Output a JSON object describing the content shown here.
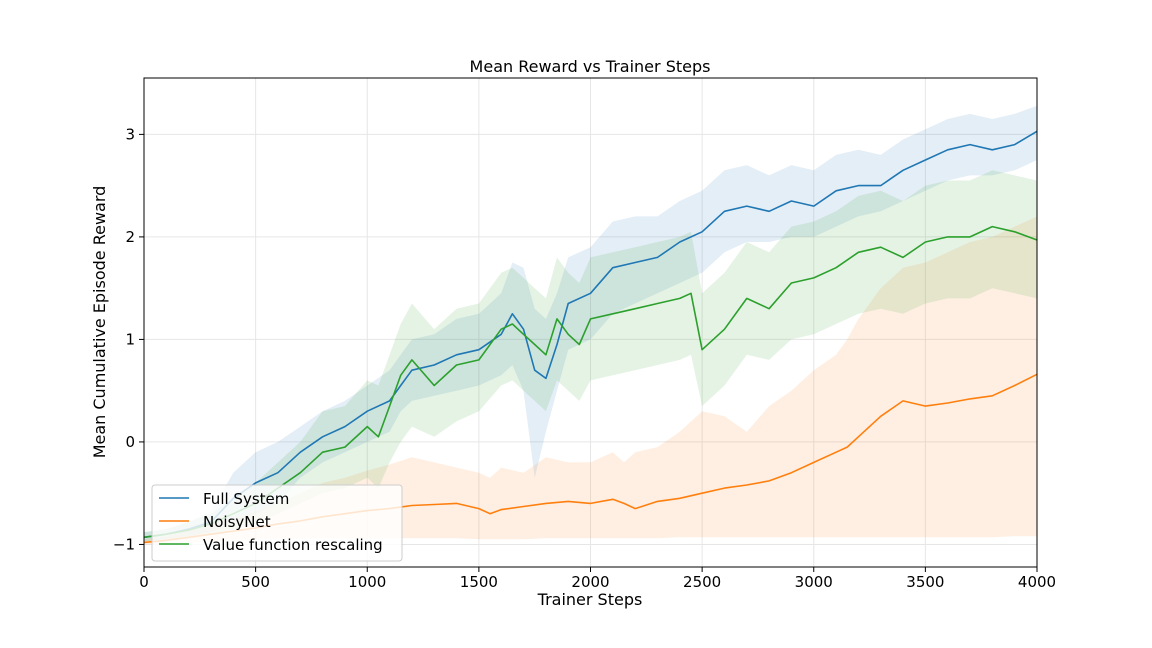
{
  "chart_data": {
    "type": "line",
    "title": "Mean Reward vs Trainer Steps",
    "xlabel": "Trainer Steps",
    "ylabel": "Mean Cumulative Episode Reward",
    "xlim": [
      0,
      4000
    ],
    "ylim": [
      -1.22,
      3.55
    ],
    "xticks": [
      0,
      500,
      1000,
      1500,
      2000,
      2500,
      3000,
      3500,
      4000
    ],
    "yticks": [
      -1,
      0,
      1,
      2,
      3
    ],
    "grid": true,
    "legend_position": "lower-left",
    "series": [
      {
        "name": "Full System",
        "color": "#1f77b4",
        "x": [
          0,
          100,
          200,
          300,
          400,
          500,
          600,
          700,
          800,
          900,
          1000,
          1100,
          1150,
          1200,
          1300,
          1400,
          1500,
          1600,
          1650,
          1700,
          1750,
          1800,
          1850,
          1900,
          2000,
          2100,
          2200,
          2300,
          2400,
          2500,
          2600,
          2700,
          2800,
          2900,
          3000,
          3100,
          3200,
          3300,
          3400,
          3500,
          3600,
          3700,
          3800,
          3900,
          4000
        ],
        "y": [
          -0.93,
          -0.9,
          -0.85,
          -0.78,
          -0.55,
          -0.4,
          -0.3,
          -0.1,
          0.05,
          0.15,
          0.3,
          0.4,
          0.55,
          0.7,
          0.75,
          0.85,
          0.9,
          1.05,
          1.25,
          1.1,
          0.7,
          0.62,
          0.95,
          1.35,
          1.45,
          1.7,
          1.75,
          1.8,
          1.95,
          2.05,
          2.25,
          2.3,
          2.25,
          2.35,
          2.3,
          2.45,
          2.5,
          2.5,
          2.65,
          2.75,
          2.85,
          2.9,
          2.85,
          2.9,
          3.03
        ],
        "band_lower": [
          -0.97,
          -0.95,
          -0.92,
          -0.88,
          -0.8,
          -0.7,
          -0.6,
          -0.35,
          -0.2,
          -0.1,
          0.0,
          0.1,
          0.3,
          0.4,
          0.45,
          0.5,
          0.55,
          0.65,
          0.75,
          0.5,
          -0.35,
          0.1,
          0.5,
          0.9,
          1.0,
          1.25,
          1.35,
          1.45,
          1.55,
          1.65,
          1.85,
          1.95,
          1.95,
          2.0,
          2.0,
          2.1,
          2.2,
          2.25,
          2.35,
          2.45,
          2.55,
          2.6,
          2.6,
          2.65,
          2.75
        ],
        "band_upper": [
          -0.88,
          -0.85,
          -0.78,
          -0.68,
          -0.3,
          -0.1,
          0.0,
          0.15,
          0.3,
          0.4,
          0.55,
          0.7,
          0.85,
          1.0,
          1.05,
          1.2,
          1.25,
          1.45,
          1.75,
          1.7,
          1.3,
          1.2,
          1.45,
          1.8,
          1.9,
          2.15,
          2.2,
          2.2,
          2.35,
          2.45,
          2.65,
          2.7,
          2.6,
          2.7,
          2.65,
          2.8,
          2.85,
          2.8,
          2.95,
          3.05,
          3.15,
          3.2,
          3.15,
          3.2,
          3.28
        ]
      },
      {
        "name": "NoisyNet",
        "color": "#ff7f0e",
        "x": [
          0,
          100,
          200,
          300,
          400,
          500,
          600,
          700,
          800,
          900,
          1000,
          1100,
          1200,
          1300,
          1400,
          1500,
          1550,
          1600,
          1700,
          1800,
          1900,
          2000,
          2100,
          2150,
          2200,
          2300,
          2400,
          2500,
          2600,
          2700,
          2800,
          2900,
          3000,
          3100,
          3150,
          3200,
          3300,
          3400,
          3500,
          3600,
          3700,
          3800,
          3900,
          4000
        ],
        "y": [
          -0.98,
          -0.96,
          -0.93,
          -0.9,
          -0.87,
          -0.84,
          -0.8,
          -0.77,
          -0.73,
          -0.7,
          -0.67,
          -0.65,
          -0.62,
          -0.61,
          -0.6,
          -0.65,
          -0.7,
          -0.66,
          -0.63,
          -0.6,
          -0.58,
          -0.6,
          -0.56,
          -0.6,
          -0.65,
          -0.58,
          -0.55,
          -0.5,
          -0.45,
          -0.42,
          -0.38,
          -0.3,
          -0.2,
          -0.1,
          -0.05,
          0.05,
          0.25,
          0.4,
          0.35,
          0.38,
          0.42,
          0.45,
          0.55,
          0.66
        ],
        "band_lower": [
          -1.0,
          -0.99,
          -0.98,
          -0.97,
          -0.96,
          -0.95,
          -0.95,
          -0.94,
          -0.94,
          -0.94,
          -0.94,
          -0.94,
          -0.94,
          -0.94,
          -0.94,
          -0.95,
          -0.95,
          -0.95,
          -0.95,
          -0.94,
          -0.94,
          -0.94,
          -0.94,
          -0.94,
          -0.94,
          -0.94,
          -0.93,
          -0.93,
          -0.93,
          -0.93,
          -0.93,
          -0.93,
          -0.93,
          -0.93,
          -0.93,
          -0.93,
          -0.93,
          -0.93,
          -0.93,
          -0.93,
          -0.93,
          -0.93,
          -0.92,
          -0.92
        ],
        "band_upper": [
          -0.95,
          -0.92,
          -0.86,
          -0.8,
          -0.75,
          -0.68,
          -0.6,
          -0.5,
          -0.4,
          -0.35,
          -0.28,
          -0.22,
          -0.15,
          -0.2,
          -0.25,
          -0.3,
          -0.35,
          -0.25,
          -0.3,
          -0.15,
          -0.2,
          -0.2,
          -0.1,
          -0.2,
          -0.1,
          -0.05,
          0.1,
          0.3,
          0.25,
          0.1,
          0.35,
          0.5,
          0.7,
          0.85,
          1.0,
          1.2,
          1.5,
          1.7,
          1.75,
          1.85,
          1.95,
          2.0,
          2.1,
          2.2
        ]
      },
      {
        "name": "Value function rescaling",
        "color": "#2ca02c",
        "x": [
          0,
          100,
          200,
          300,
          400,
          500,
          600,
          700,
          800,
          900,
          1000,
          1050,
          1100,
          1150,
          1200,
          1300,
          1400,
          1500,
          1600,
          1650,
          1700,
          1750,
          1800,
          1850,
          1900,
          1950,
          2000,
          2100,
          2200,
          2300,
          2400,
          2450,
          2500,
          2600,
          2700,
          2800,
          2900,
          3000,
          3100,
          3200,
          3300,
          3400,
          3500,
          3600,
          3700,
          3800,
          3900,
          4000
        ],
        "y": [
          -0.93,
          -0.9,
          -0.86,
          -0.8,
          -0.7,
          -0.6,
          -0.45,
          -0.3,
          -0.1,
          -0.05,
          0.15,
          0.05,
          0.35,
          0.65,
          0.8,
          0.55,
          0.75,
          0.8,
          1.1,
          1.15,
          1.05,
          0.95,
          0.85,
          1.2,
          1.05,
          0.95,
          1.2,
          1.25,
          1.3,
          1.35,
          1.4,
          1.45,
          0.9,
          1.1,
          1.4,
          1.3,
          1.55,
          1.6,
          1.7,
          1.85,
          1.9,
          1.8,
          1.95,
          2.0,
          2.0,
          2.1,
          2.05,
          1.97
        ],
        "band_lower": [
          -0.97,
          -0.95,
          -0.93,
          -0.9,
          -0.85,
          -0.8,
          -0.7,
          -0.6,
          -0.5,
          -0.45,
          -0.35,
          -0.45,
          -0.2,
          0.0,
          0.15,
          0.05,
          0.2,
          0.3,
          0.55,
          0.6,
          0.5,
          0.4,
          0.3,
          0.6,
          0.5,
          0.4,
          0.6,
          0.65,
          0.7,
          0.75,
          0.8,
          0.85,
          0.35,
          0.55,
          0.85,
          0.8,
          1.0,
          1.05,
          1.15,
          1.25,
          1.3,
          1.25,
          1.35,
          1.4,
          1.4,
          1.5,
          1.45,
          1.4
        ],
        "band_upper": [
          -0.88,
          -0.85,
          -0.78,
          -0.7,
          -0.55,
          -0.4,
          -0.2,
          0.0,
          0.3,
          0.35,
          0.6,
          0.55,
          0.85,
          1.15,
          1.35,
          1.1,
          1.3,
          1.35,
          1.65,
          1.7,
          1.6,
          1.5,
          1.4,
          1.8,
          1.65,
          1.55,
          1.8,
          1.85,
          1.9,
          1.95,
          2.0,
          2.05,
          1.45,
          1.65,
          1.95,
          1.85,
          2.1,
          2.15,
          2.25,
          2.4,
          2.45,
          2.35,
          2.5,
          2.55,
          2.55,
          2.65,
          2.6,
          2.55
        ]
      }
    ]
  }
}
